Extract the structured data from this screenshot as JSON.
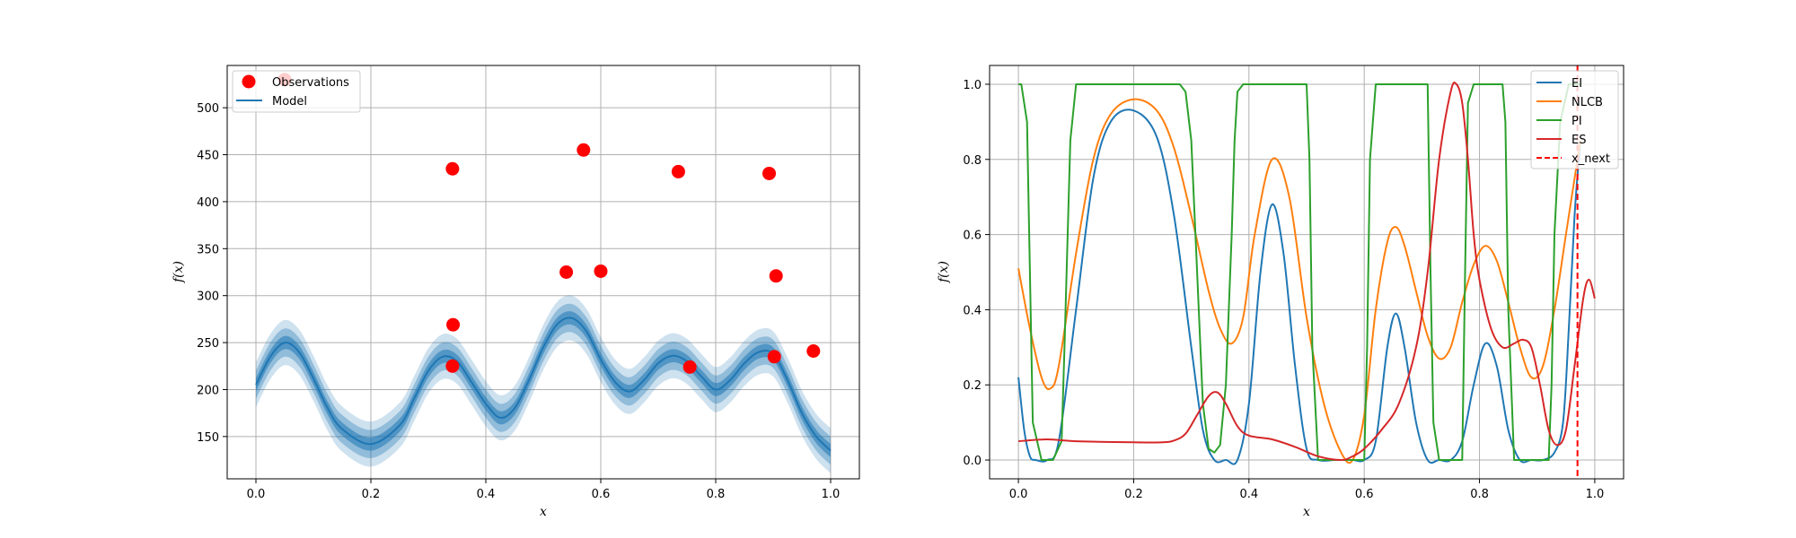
{
  "colors": {
    "observations": "#ff0000",
    "model": "#1f77b4",
    "EI": "#1f77b4",
    "NLCB": "#ff7f0e",
    "PI": "#2ca02c",
    "ES": "#d62728",
    "x_next": "#ff0000"
  },
  "chart_data": [
    {
      "type": "scatter",
      "xlabel": "x",
      "ylabel": "f(x)",
      "xlim": [
        -0.05,
        1.05
      ],
      "ylim": [
        105,
        545
      ],
      "grid": true,
      "legend": {
        "placement": "top-left",
        "entries": [
          "Observations",
          "Model"
        ]
      },
      "xticks": [
        0.0,
        0.2,
        0.4,
        0.6,
        0.8,
        1.0
      ],
      "xtick_labels": [
        "0.0",
        "0.2",
        "0.4",
        "0.6",
        "0.8",
        "1.0"
      ],
      "yticks": [
        150,
        200,
        250,
        300,
        350,
        400,
        450,
        500
      ],
      "ytick_labels": [
        "150",
        "200",
        "250",
        "300",
        "350",
        "400",
        "450",
        "500"
      ],
      "series": [
        {
          "name": "Observations",
          "kind": "scatter",
          "x": [
            0.05,
            0.342,
            0.343,
            0.342,
            0.54,
            0.57,
            0.6,
            0.735,
            0.755,
            0.893,
            0.902,
            0.905,
            0.97
          ],
          "y": [
            530,
            435,
            269,
            225,
            325,
            455,
            326,
            432,
            224,
            430,
            235,
            321,
            241
          ]
        },
        {
          "name": "Model",
          "kind": "line",
          "x": [
            0.0,
            0.025,
            0.05,
            0.075,
            0.1,
            0.125,
            0.15,
            0.2,
            0.25,
            0.275,
            0.3,
            0.325,
            0.35,
            0.375,
            0.4,
            0.425,
            0.45,
            0.475,
            0.5,
            0.525,
            0.55,
            0.575,
            0.6,
            0.625,
            0.65,
            0.675,
            0.7,
            0.725,
            0.75,
            0.775,
            0.8,
            0.825,
            0.85,
            0.875,
            0.9,
            0.925,
            0.95,
            0.975,
            1.0
          ],
          "y": [
            205,
            235,
            250,
            240,
            212,
            180,
            158,
            142,
            162,
            190,
            220,
            235,
            230,
            208,
            185,
            170,
            180,
            210,
            245,
            270,
            276,
            262,
            232,
            208,
            198,
            210,
            228,
            236,
            230,
            214,
            200,
            210,
            228,
            240,
            238,
            210,
            175,
            150,
            135
          ],
          "bands": [
            7,
            15,
            24
          ]
        }
      ]
    },
    {
      "type": "line",
      "xlabel": "x",
      "ylabel": "f(x)",
      "xlim": [
        -0.05,
        1.05
      ],
      "ylim": [
        -0.05,
        1.05
      ],
      "grid": true,
      "legend": {
        "placement": "top-right",
        "entries": [
          "EI",
          "NLCB",
          "PI",
          "ES",
          "x_next"
        ]
      },
      "xticks": [
        0.0,
        0.2,
        0.4,
        0.6,
        0.8,
        1.0
      ],
      "xtick_labels": [
        "0.0",
        "0.2",
        "0.4",
        "0.6",
        "0.8",
        "1.0"
      ],
      "yticks": [
        0.0,
        0.2,
        0.4,
        0.6,
        0.8,
        1.0
      ],
      "ytick_labels": [
        "0.0",
        "0.2",
        "0.4",
        "0.6",
        "0.8",
        "1.0"
      ],
      "x_next": 0.97,
      "series": [
        {
          "name": "EI",
          "x": [
            0.0,
            0.01,
            0.02,
            0.03,
            0.05,
            0.07,
            0.1,
            0.13,
            0.16,
            0.2,
            0.24,
            0.27,
            0.3,
            0.32,
            0.34,
            0.36,
            0.38,
            0.4,
            0.42,
            0.44,
            0.46,
            0.48,
            0.5,
            0.52,
            0.55,
            0.58,
            0.6,
            0.62,
            0.64,
            0.655,
            0.67,
            0.69,
            0.71,
            0.73,
            0.75,
            0.77,
            0.79,
            0.81,
            0.83,
            0.85,
            0.87,
            0.89,
            0.91,
            0.93,
            0.945,
            0.955,
            0.965,
            0.975
          ],
          "y": [
            0.22,
            0.08,
            0.01,
            0.0,
            0.0,
            0.05,
            0.4,
            0.75,
            0.9,
            0.93,
            0.86,
            0.65,
            0.3,
            0.08,
            0.0,
            0.0,
            0.0,
            0.15,
            0.5,
            0.68,
            0.55,
            0.25,
            0.03,
            0.0,
            0.0,
            0.0,
            0.0,
            0.05,
            0.3,
            0.39,
            0.3,
            0.1,
            0.0,
            0.0,
            0.0,
            0.05,
            0.2,
            0.31,
            0.25,
            0.08,
            0.0,
            0.0,
            0.0,
            0.02,
            0.1,
            0.35,
            0.65,
            0.85
          ]
        },
        {
          "name": "NLCB",
          "x": [
            0.0,
            0.02,
            0.04,
            0.055,
            0.07,
            0.1,
            0.13,
            0.16,
            0.2,
            0.24,
            0.27,
            0.3,
            0.33,
            0.35,
            0.37,
            0.39,
            0.41,
            0.44,
            0.47,
            0.5,
            0.53,
            0.56,
            0.58,
            0.6,
            0.62,
            0.64,
            0.655,
            0.67,
            0.69,
            0.71,
            0.73,
            0.75,
            0.77,
            0.79,
            0.81,
            0.83,
            0.85,
            0.87,
            0.89,
            0.91,
            0.93,
            0.95,
            0.975
          ],
          "y": [
            0.51,
            0.35,
            0.22,
            0.19,
            0.25,
            0.55,
            0.8,
            0.92,
            0.96,
            0.93,
            0.83,
            0.65,
            0.45,
            0.35,
            0.31,
            0.38,
            0.6,
            0.8,
            0.7,
            0.38,
            0.15,
            0.02,
            0.0,
            0.12,
            0.4,
            0.58,
            0.62,
            0.57,
            0.45,
            0.33,
            0.27,
            0.3,
            0.42,
            0.52,
            0.57,
            0.53,
            0.42,
            0.3,
            0.22,
            0.25,
            0.4,
            0.6,
            0.85
          ]
        },
        {
          "name": "PI",
          "x": [
            0.0,
            0.005,
            0.015,
            0.02,
            0.025,
            0.04,
            0.06,
            0.075,
            0.08,
            0.09,
            0.1,
            0.11,
            0.28,
            0.29,
            0.3,
            0.31,
            0.32,
            0.33,
            0.34,
            0.35,
            0.36,
            0.37,
            0.375,
            0.38,
            0.39,
            0.5,
            0.505,
            0.51,
            0.52,
            0.6,
            0.605,
            0.61,
            0.62,
            0.71,
            0.715,
            0.72,
            0.73,
            0.77,
            0.775,
            0.78,
            0.79,
            0.84,
            0.845,
            0.85,
            0.86,
            0.92,
            0.925,
            0.93,
            0.94,
            0.955,
            0.965,
            0.975
          ],
          "y": [
            1.0,
            1.0,
            0.9,
            0.5,
            0.1,
            0.0,
            0.0,
            0.05,
            0.3,
            0.85,
            1.0,
            1.0,
            1.0,
            0.98,
            0.85,
            0.5,
            0.15,
            0.03,
            0.02,
            0.04,
            0.2,
            0.6,
            0.85,
            0.98,
            1.0,
            1.0,
            0.8,
            0.3,
            0.0,
            0.0,
            0.3,
            0.8,
            1.0,
            1.0,
            0.5,
            0.1,
            0.0,
            0.0,
            0.5,
            0.95,
            1.0,
            1.0,
            0.9,
            0.4,
            0.0,
            0.0,
            0.2,
            0.6,
            0.9,
            1.0,
            1.0,
            1.0
          ]
        },
        {
          "name": "ES",
          "x": [
            0.0,
            0.05,
            0.1,
            0.2,
            0.25,
            0.27,
            0.29,
            0.31,
            0.33,
            0.345,
            0.36,
            0.38,
            0.4,
            0.44,
            0.48,
            0.52,
            0.56,
            0.58,
            0.6,
            0.63,
            0.66,
            0.69,
            0.71,
            0.73,
            0.75,
            0.76,
            0.77,
            0.78,
            0.79,
            0.8,
            0.82,
            0.84,
            0.86,
            0.875,
            0.89,
            0.905,
            0.92,
            0.935,
            0.95,
            0.965,
            0.98,
            0.99,
            1.0
          ],
          "y": [
            0.05,
            0.055,
            0.05,
            0.047,
            0.047,
            0.052,
            0.07,
            0.12,
            0.17,
            0.18,
            0.15,
            0.09,
            0.065,
            0.055,
            0.035,
            0.01,
            0.0,
            0.01,
            0.03,
            0.08,
            0.15,
            0.3,
            0.5,
            0.8,
            0.98,
            1.0,
            0.95,
            0.8,
            0.6,
            0.48,
            0.35,
            0.3,
            0.31,
            0.32,
            0.3,
            0.2,
            0.08,
            0.04,
            0.08,
            0.25,
            0.43,
            0.48,
            0.43
          ]
        }
      ]
    }
  ]
}
